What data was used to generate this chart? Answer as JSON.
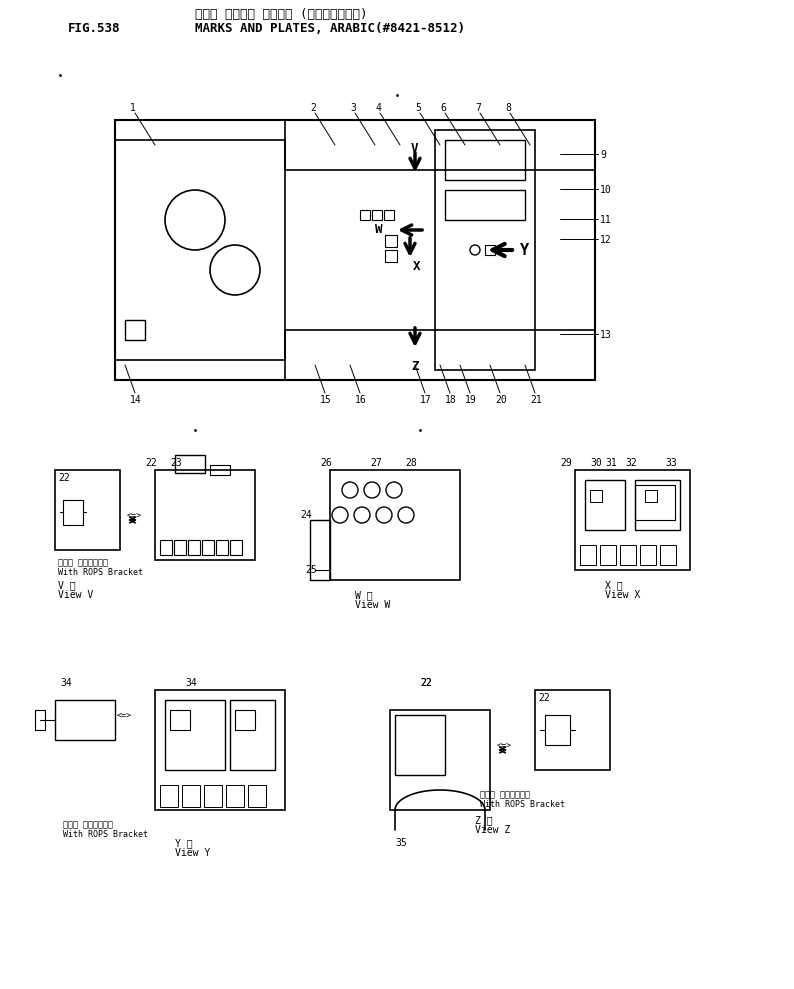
{
  "title_line1": "マーク オラビー プレート (アラビーアゴー)",
  "title_line2": "MARKS AND PLATES, ARABIC(#8421-8512)",
  "fig_label": "FIG.538",
  "background_color": "#ffffff",
  "line_color": "#000000",
  "text_color": "#000000"
}
